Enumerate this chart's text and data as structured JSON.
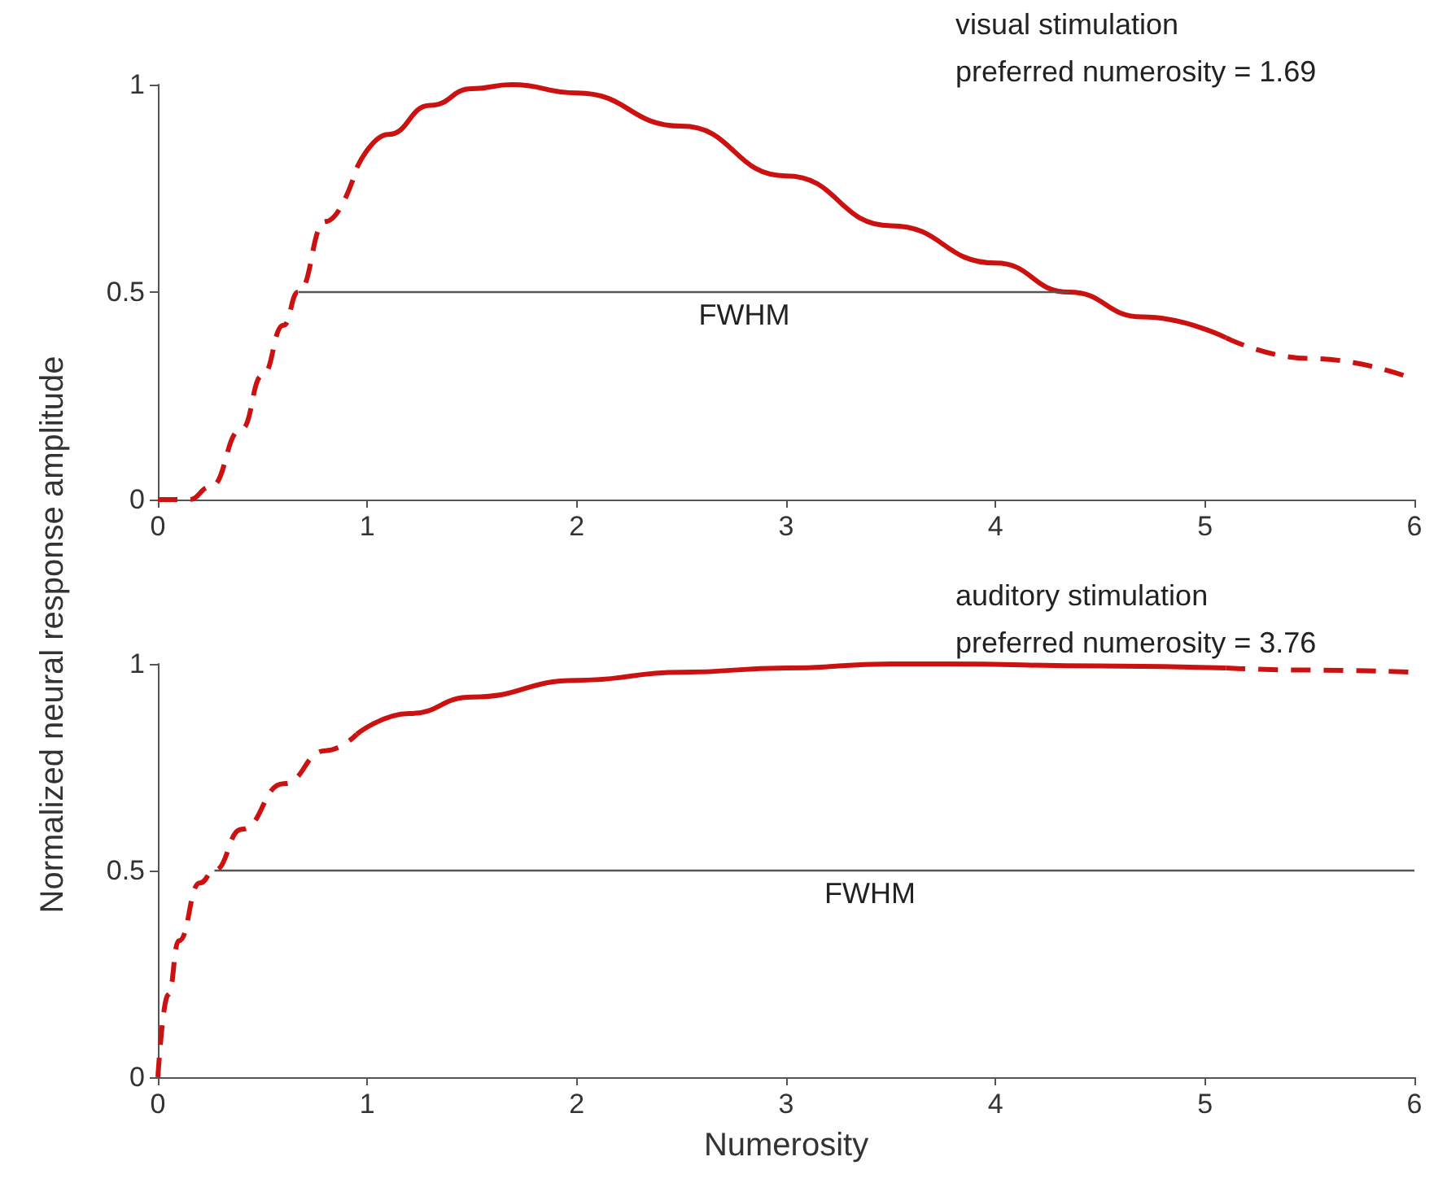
{
  "chart_data": [
    {
      "type": "line",
      "ylabel": "Normalized neural response amplitude",
      "xlim": [
        0,
        6
      ],
      "xticks": [
        0,
        1,
        2,
        3,
        4,
        5,
        6
      ],
      "ylim": [
        0,
        1
      ],
      "yticks": [
        0,
        0.5,
        1
      ],
      "grid": false,
      "marker": "none",
      "annotations": [
        "visual stimulation",
        "preferred numerosity = 1.69",
        {
          "text": "FWHM",
          "x": 2.8,
          "y": 0.5
        }
      ],
      "series": [
        {
          "color": "#cc1111",
          "line_style": "dashed",
          "x": [
            0,
            0.15,
            0.25,
            0.4,
            0.5,
            0.6,
            0.67,
            0.8,
            0.95
          ],
          "values": [
            0,
            0,
            0.03,
            0.17,
            0.3,
            0.42,
            0.5,
            0.67,
            0.8
          ]
        },
        {
          "color": "#cc1111",
          "line_style": "solid",
          "x": [
            0.95,
            1.1,
            1.3,
            1.5,
            1.69,
            2,
            2.5,
            3,
            3.5,
            4,
            4.35,
            4.7,
            5.1
          ],
          "values": [
            0.8,
            0.88,
            0.95,
            0.99,
            1,
            0.98,
            0.9,
            0.78,
            0.66,
            0.57,
            0.5,
            0.44,
            0.39
          ]
        },
        {
          "color": "#cc1111",
          "line_style": "dashed",
          "x": [
            5.1,
            5.5,
            6
          ],
          "values": [
            0.39,
            0.34,
            0.29
          ]
        },
        {
          "color": "#555555",
          "line_style": "solid",
          "x": [
            0.67,
            4.35
          ],
          "values": [
            0.5,
            0.5
          ]
        }
      ]
    },
    {
      "type": "line",
      "xlabel": "Numerosity",
      "xlim": [
        0,
        6
      ],
      "xticks": [
        0,
        1,
        2,
        3,
        4,
        5,
        6
      ],
      "ylim": [
        0,
        1
      ],
      "yticks": [
        0,
        0.5,
        1
      ],
      "grid": false,
      "marker": "none",
      "annotations": [
        "auditory stimulation",
        "preferred numerosity = 3.76",
        {
          "text": "FWHM",
          "x": 3.4,
          "y": 0.5
        }
      ],
      "series": [
        {
          "color": "#cc1111",
          "line_style": "dashed",
          "x": [
            0,
            0.05,
            0.1,
            0.2,
            0.27,
            0.4,
            0.6,
            0.8,
            0.95
          ],
          "values": [
            0,
            0.2,
            0.33,
            0.47,
            0.5,
            0.6,
            0.71,
            0.79,
            0.83
          ]
        },
        {
          "color": "#cc1111",
          "line_style": "solid",
          "x": [
            0.95,
            1.2,
            1.5,
            2,
            2.5,
            3,
            3.5,
            3.76,
            4.5,
            5.1
          ],
          "values": [
            0.83,
            0.88,
            0.92,
            0.96,
            0.98,
            0.99,
            1,
            1,
            0.995,
            0.99
          ]
        },
        {
          "color": "#cc1111",
          "line_style": "dashed",
          "x": [
            5.1,
            5.5,
            6
          ],
          "values": [
            0.99,
            0.985,
            0.98
          ]
        },
        {
          "color": "#555555",
          "line_style": "solid",
          "x": [
            0.27,
            6
          ],
          "values": [
            0.5,
            0.5
          ]
        }
      ]
    }
  ]
}
